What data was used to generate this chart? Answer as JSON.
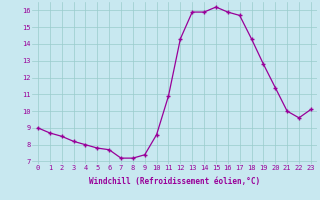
{
  "x": [
    0,
    1,
    2,
    3,
    4,
    5,
    6,
    7,
    8,
    9,
    10,
    11,
    12,
    13,
    14,
    15,
    16,
    17,
    18,
    19,
    20,
    21,
    22,
    23
  ],
  "y": [
    9.0,
    8.7,
    8.5,
    8.2,
    8.0,
    7.8,
    7.7,
    7.2,
    7.2,
    7.4,
    8.6,
    10.9,
    14.3,
    15.9,
    15.9,
    16.2,
    15.9,
    15.7,
    14.3,
    12.8,
    11.4,
    10.0,
    9.6,
    10.1
  ],
  "xlabel": "Windchill (Refroidissement éolien,°C)",
  "xlim_min": -0.5,
  "xlim_max": 23.5,
  "ylim_min": 6.85,
  "ylim_max": 16.5,
  "yticks": [
    7,
    8,
    9,
    10,
    11,
    12,
    13,
    14,
    15,
    16
  ],
  "xticks": [
    0,
    1,
    2,
    3,
    4,
    5,
    6,
    7,
    8,
    9,
    10,
    11,
    12,
    13,
    14,
    15,
    16,
    17,
    18,
    19,
    20,
    21,
    22,
    23
  ],
  "line_color": "#990099",
  "marker": "+",
  "bg_color": "#c8e8f0",
  "grid_color": "#99cccc",
  "label_color": "#990099",
  "tick_color": "#990099",
  "tick_fontsize": 5,
  "xlabel_fontsize": 5.5
}
